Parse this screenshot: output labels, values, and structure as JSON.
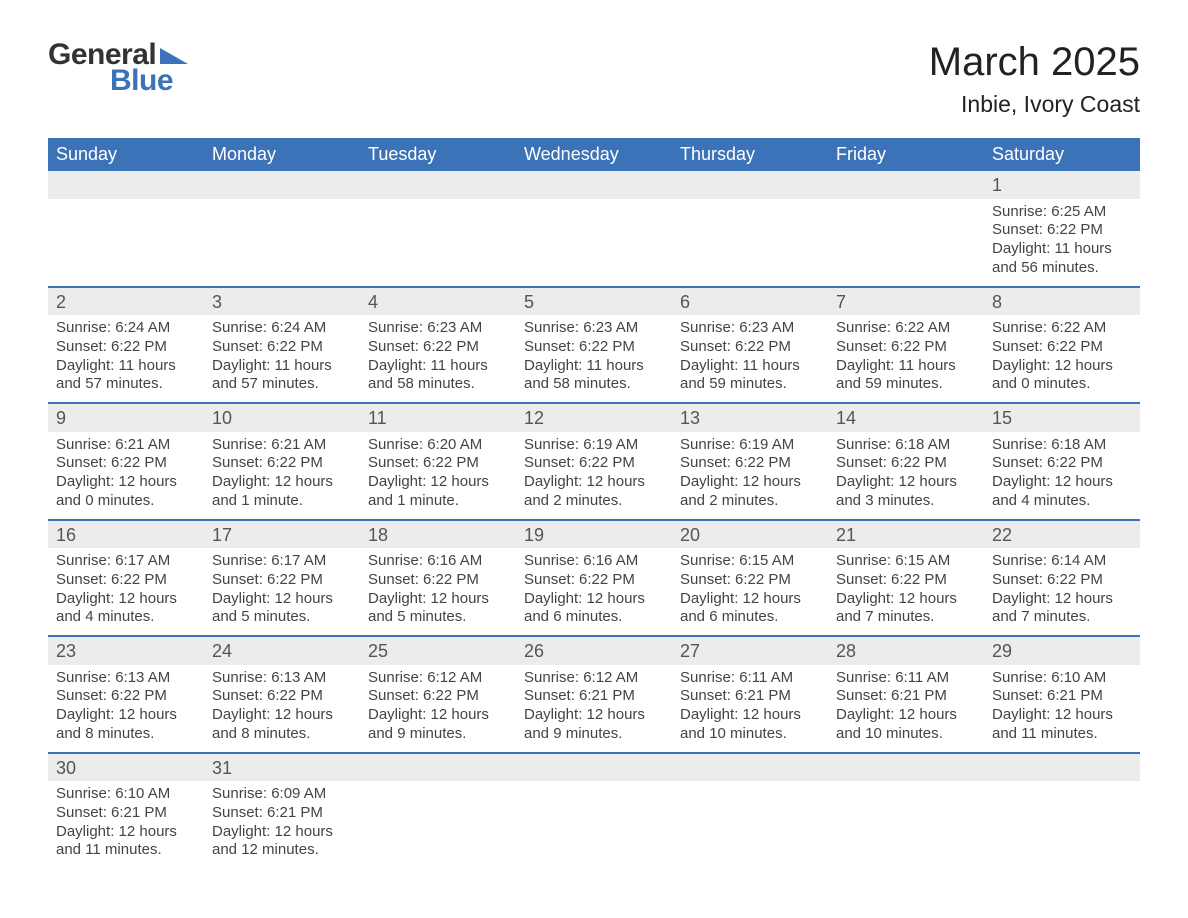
{
  "brand": {
    "word1": "General",
    "word2": "Blue",
    "text_color": "#333333",
    "accent_color": "#3b72b8"
  },
  "header": {
    "title": "March 2025",
    "location": "Inbie, Ivory Coast"
  },
  "calendar": {
    "day_headers": [
      "Sunday",
      "Monday",
      "Tuesday",
      "Wednesday",
      "Thursday",
      "Friday",
      "Saturday"
    ],
    "header_bg": "#3b72b8",
    "header_fg": "#ffffff",
    "daynum_bg": "#ececec",
    "row_border_color": "#3b72b8",
    "weeks": [
      {
        "nums": [
          "",
          "",
          "",
          "",
          "",
          "",
          "1"
        ],
        "cells": [
          {
            "sunrise": "",
            "sunset": "",
            "daylight": ""
          },
          {
            "sunrise": "",
            "sunset": "",
            "daylight": ""
          },
          {
            "sunrise": "",
            "sunset": "",
            "daylight": ""
          },
          {
            "sunrise": "",
            "sunset": "",
            "daylight": ""
          },
          {
            "sunrise": "",
            "sunset": "",
            "daylight": ""
          },
          {
            "sunrise": "",
            "sunset": "",
            "daylight": ""
          },
          {
            "sunrise": "Sunrise: 6:25 AM",
            "sunset": "Sunset: 6:22 PM",
            "daylight": "Daylight: 11 hours and 56 minutes."
          }
        ]
      },
      {
        "nums": [
          "2",
          "3",
          "4",
          "5",
          "6",
          "7",
          "8"
        ],
        "cells": [
          {
            "sunrise": "Sunrise: 6:24 AM",
            "sunset": "Sunset: 6:22 PM",
            "daylight": "Daylight: 11 hours and 57 minutes."
          },
          {
            "sunrise": "Sunrise: 6:24 AM",
            "sunset": "Sunset: 6:22 PM",
            "daylight": "Daylight: 11 hours and 57 minutes."
          },
          {
            "sunrise": "Sunrise: 6:23 AM",
            "sunset": "Sunset: 6:22 PM",
            "daylight": "Daylight: 11 hours and 58 minutes."
          },
          {
            "sunrise": "Sunrise: 6:23 AM",
            "sunset": "Sunset: 6:22 PM",
            "daylight": "Daylight: 11 hours and 58 minutes."
          },
          {
            "sunrise": "Sunrise: 6:23 AM",
            "sunset": "Sunset: 6:22 PM",
            "daylight": "Daylight: 11 hours and 59 minutes."
          },
          {
            "sunrise": "Sunrise: 6:22 AM",
            "sunset": "Sunset: 6:22 PM",
            "daylight": "Daylight: 11 hours and 59 minutes."
          },
          {
            "sunrise": "Sunrise: 6:22 AM",
            "sunset": "Sunset: 6:22 PM",
            "daylight": "Daylight: 12 hours and 0 minutes."
          }
        ]
      },
      {
        "nums": [
          "9",
          "10",
          "11",
          "12",
          "13",
          "14",
          "15"
        ],
        "cells": [
          {
            "sunrise": "Sunrise: 6:21 AM",
            "sunset": "Sunset: 6:22 PM",
            "daylight": "Daylight: 12 hours and 0 minutes."
          },
          {
            "sunrise": "Sunrise: 6:21 AM",
            "sunset": "Sunset: 6:22 PM",
            "daylight": "Daylight: 12 hours and 1 minute."
          },
          {
            "sunrise": "Sunrise: 6:20 AM",
            "sunset": "Sunset: 6:22 PM",
            "daylight": "Daylight: 12 hours and 1 minute."
          },
          {
            "sunrise": "Sunrise: 6:19 AM",
            "sunset": "Sunset: 6:22 PM",
            "daylight": "Daylight: 12 hours and 2 minutes."
          },
          {
            "sunrise": "Sunrise: 6:19 AM",
            "sunset": "Sunset: 6:22 PM",
            "daylight": "Daylight: 12 hours and 2 minutes."
          },
          {
            "sunrise": "Sunrise: 6:18 AM",
            "sunset": "Sunset: 6:22 PM",
            "daylight": "Daylight: 12 hours and 3 minutes."
          },
          {
            "sunrise": "Sunrise: 6:18 AM",
            "sunset": "Sunset: 6:22 PM",
            "daylight": "Daylight: 12 hours and 4 minutes."
          }
        ]
      },
      {
        "nums": [
          "16",
          "17",
          "18",
          "19",
          "20",
          "21",
          "22"
        ],
        "cells": [
          {
            "sunrise": "Sunrise: 6:17 AM",
            "sunset": "Sunset: 6:22 PM",
            "daylight": "Daylight: 12 hours and 4 minutes."
          },
          {
            "sunrise": "Sunrise: 6:17 AM",
            "sunset": "Sunset: 6:22 PM",
            "daylight": "Daylight: 12 hours and 5 minutes."
          },
          {
            "sunrise": "Sunrise: 6:16 AM",
            "sunset": "Sunset: 6:22 PM",
            "daylight": "Daylight: 12 hours and 5 minutes."
          },
          {
            "sunrise": "Sunrise: 6:16 AM",
            "sunset": "Sunset: 6:22 PM",
            "daylight": "Daylight: 12 hours and 6 minutes."
          },
          {
            "sunrise": "Sunrise: 6:15 AM",
            "sunset": "Sunset: 6:22 PM",
            "daylight": "Daylight: 12 hours and 6 minutes."
          },
          {
            "sunrise": "Sunrise: 6:15 AM",
            "sunset": "Sunset: 6:22 PM",
            "daylight": "Daylight: 12 hours and 7 minutes."
          },
          {
            "sunrise": "Sunrise: 6:14 AM",
            "sunset": "Sunset: 6:22 PM",
            "daylight": "Daylight: 12 hours and 7 minutes."
          }
        ]
      },
      {
        "nums": [
          "23",
          "24",
          "25",
          "26",
          "27",
          "28",
          "29"
        ],
        "cells": [
          {
            "sunrise": "Sunrise: 6:13 AM",
            "sunset": "Sunset: 6:22 PM",
            "daylight": "Daylight: 12 hours and 8 minutes."
          },
          {
            "sunrise": "Sunrise: 6:13 AM",
            "sunset": "Sunset: 6:22 PM",
            "daylight": "Daylight: 12 hours and 8 minutes."
          },
          {
            "sunrise": "Sunrise: 6:12 AM",
            "sunset": "Sunset: 6:22 PM",
            "daylight": "Daylight: 12 hours and 9 minutes."
          },
          {
            "sunrise": "Sunrise: 6:12 AM",
            "sunset": "Sunset: 6:21 PM",
            "daylight": "Daylight: 12 hours and 9 minutes."
          },
          {
            "sunrise": "Sunrise: 6:11 AM",
            "sunset": "Sunset: 6:21 PM",
            "daylight": "Daylight: 12 hours and 10 minutes."
          },
          {
            "sunrise": "Sunrise: 6:11 AM",
            "sunset": "Sunset: 6:21 PM",
            "daylight": "Daylight: 12 hours and 10 minutes."
          },
          {
            "sunrise": "Sunrise: 6:10 AM",
            "sunset": "Sunset: 6:21 PM",
            "daylight": "Daylight: 12 hours and 11 minutes."
          }
        ]
      },
      {
        "nums": [
          "30",
          "31",
          "",
          "",
          "",
          "",
          ""
        ],
        "cells": [
          {
            "sunrise": "Sunrise: 6:10 AM",
            "sunset": "Sunset: 6:21 PM",
            "daylight": "Daylight: 12 hours and 11 minutes."
          },
          {
            "sunrise": "Sunrise: 6:09 AM",
            "sunset": "Sunset: 6:21 PM",
            "daylight": "Daylight: 12 hours and 12 minutes."
          },
          {
            "sunrise": "",
            "sunset": "",
            "daylight": ""
          },
          {
            "sunrise": "",
            "sunset": "",
            "daylight": ""
          },
          {
            "sunrise": "",
            "sunset": "",
            "daylight": ""
          },
          {
            "sunrise": "",
            "sunset": "",
            "daylight": ""
          },
          {
            "sunrise": "",
            "sunset": "",
            "daylight": ""
          }
        ]
      }
    ]
  }
}
